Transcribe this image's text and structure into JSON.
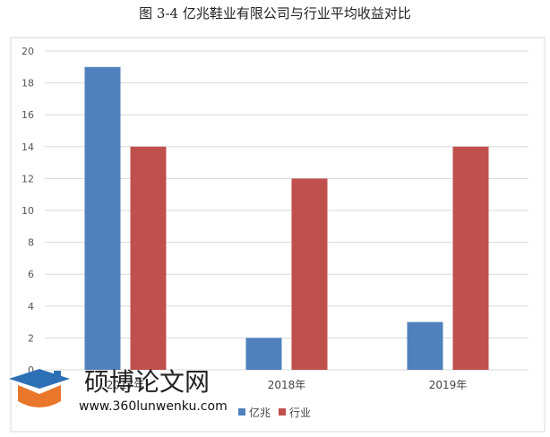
{
  "figure_title": "图 3-4 亿兆鞋业有限公司与行业平均收益对比",
  "watermark": {
    "title": "硕博论文网",
    "url": "www.360lunwenku.com"
  },
  "colors": {
    "yizhao": "#4f81bd",
    "industry": "#c0504d"
  },
  "chart_data": {
    "type": "bar",
    "categories": [
      "2017年",
      "2018年",
      "2019年"
    ],
    "series": [
      {
        "name": "亿兆",
        "values": [
          19,
          2,
          3
        ]
      },
      {
        "name": "行业",
        "values": [
          14,
          12,
          14
        ]
      }
    ],
    "yticks": [
      0,
      2,
      4,
      6,
      8,
      10,
      12,
      14,
      16,
      18,
      20
    ],
    "ylim": [
      0,
      20
    ],
    "grid": true,
    "legend": "bottom"
  }
}
